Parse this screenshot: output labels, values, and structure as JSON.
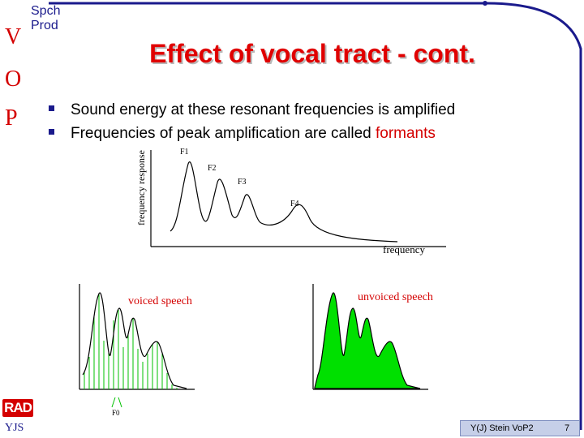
{
  "header": {
    "vop_letters": [
      "V",
      "O",
      "P"
    ],
    "topic_lines": [
      "Spch",
      "Prod"
    ]
  },
  "title": "Effect of vocal tract - cont.",
  "bullets": [
    {
      "before": "Sound energy at these resonant frequencies is amplified",
      "highlight": "",
      "after": ""
    },
    {
      "before": "Frequencies of peak amplification are called ",
      "highlight": "formants",
      "after": ""
    }
  ],
  "figure": {
    "y_axis_label": "frequency response",
    "x_axis_label": "frequency",
    "formant_labels": [
      "F1",
      "F2",
      "F3",
      "F4"
    ],
    "voiced_label": "voiced speech",
    "unvoiced_label": "unvoiced speech",
    "f0_label": "F0"
  },
  "footer": {
    "logo": "RAD",
    "initials": "YJS",
    "credit": "Y(J) Stein VoP2",
    "page": "7"
  },
  "colors": {
    "accent_red": "#d40000",
    "navy": "#1a1a8c",
    "spectrum_green": "#00e000"
  }
}
